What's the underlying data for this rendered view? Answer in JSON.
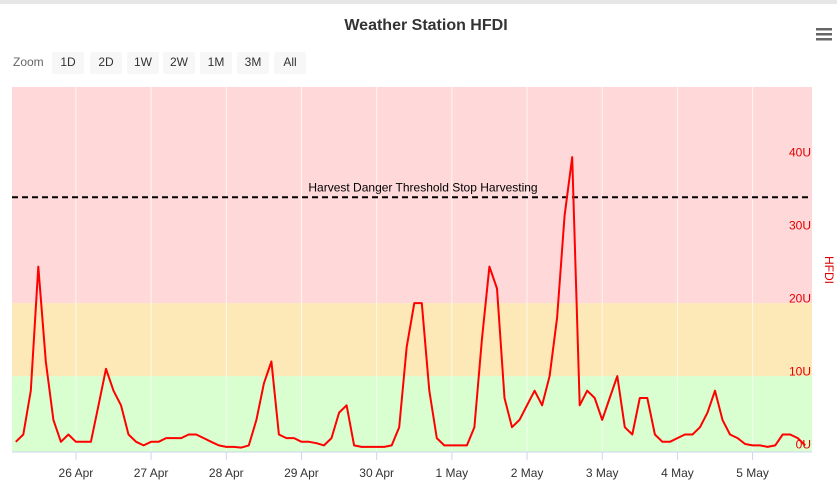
{
  "range_selector": {
    "label": "Zoom",
    "buttons": [
      "1D",
      "2D",
      "1W",
      "2W",
      "1M",
      "3M",
      "All"
    ]
  },
  "chart_data": {
    "type": "line",
    "title": "Weather Station HFDI",
    "y_axis_label": "HFDI",
    "y_axis_side": "right",
    "xlim": [
      115.15,
      125.79
    ],
    "ylim": [
      -0.4,
      49.6
    ],
    "xticks": [
      {
        "value": 116,
        "label": "26 Apr"
      },
      {
        "value": 117,
        "label": "27 Apr"
      },
      {
        "value": 118,
        "label": "28 Apr"
      },
      {
        "value": 119,
        "label": "29 Apr"
      },
      {
        "value": 120,
        "label": "30 Apr"
      },
      {
        "value": 121,
        "label": "1 May"
      },
      {
        "value": 122,
        "label": "2 May"
      },
      {
        "value": 123,
        "label": "3 May"
      },
      {
        "value": 124,
        "label": "4 May"
      },
      {
        "value": 125,
        "label": "5 May"
      }
    ],
    "yticks": [
      {
        "value": 0,
        "label": "0U"
      },
      {
        "value": 10,
        "label": "10U"
      },
      {
        "value": 20,
        "label": "20U"
      },
      {
        "value": 30,
        "label": "30U"
      },
      {
        "value": 40,
        "label": "40U"
      }
    ],
    "plot_bands": [
      {
        "from": 0,
        "to": 10,
        "color": "#d9ffd0"
      },
      {
        "from": 10,
        "to": 20,
        "color": "#fde8b8"
      },
      {
        "from": 20,
        "to": 50,
        "color": "#ffd9d9"
      }
    ],
    "plot_line": {
      "value": 34.5,
      "label": "Harvest Danger Threshold Stop Harvesting"
    },
    "series": [
      {
        "name": "HFDI",
        "color": "#ff0000",
        "x": [
          115.2,
          115.3,
          115.4,
          115.5,
          115.6,
          115.7,
          115.8,
          115.9,
          116.0,
          116.1,
          116.2,
          116.3,
          116.4,
          116.5,
          116.6,
          116.7,
          116.8,
          116.9,
          117.0,
          117.1,
          117.2,
          117.3,
          117.4,
          117.5,
          117.6,
          117.7,
          117.8,
          117.9,
          118.0,
          118.1,
          118.2,
          118.3,
          118.4,
          118.5,
          118.6,
          118.7,
          118.8,
          118.9,
          119.0,
          119.1,
          119.2,
          119.3,
          119.4,
          119.5,
          119.6,
          119.7,
          119.8,
          119.9,
          120.0,
          120.1,
          120.2,
          120.3,
          120.4,
          120.5,
          120.6,
          120.7,
          120.8,
          120.9,
          121.0,
          121.1,
          121.2,
          121.3,
          121.4,
          121.5,
          121.6,
          121.7,
          121.8,
          121.9,
          122.0,
          122.1,
          122.2,
          122.3,
          122.4,
          122.5,
          122.6,
          122.7,
          122.8,
          122.9,
          123.0,
          123.1,
          123.2,
          123.3,
          123.4,
          123.5,
          123.6,
          123.7,
          123.8,
          123.9,
          124.0,
          124.1,
          124.2,
          124.3,
          124.4,
          124.5,
          124.6,
          124.7,
          124.8,
          124.9,
          125.0,
          125.1,
          125.2,
          125.3,
          125.4,
          125.5,
          125.6,
          125.7
        ],
        "values": [
          1,
          2,
          8,
          25,
          12,
          4,
          1,
          2,
          1,
          1,
          1,
          6,
          11,
          8,
          6,
          2,
          1,
          0.5,
          1,
          1,
          1.5,
          1.5,
          1.5,
          2,
          2,
          1.5,
          1,
          0.5,
          0.3,
          0.3,
          0.2,
          0.5,
          4,
          9,
          12,
          2,
          1.5,
          1.5,
          1,
          1,
          0.8,
          0.5,
          1.5,
          5,
          6,
          0.5,
          0.3,
          0.3,
          0.3,
          0.3,
          0.5,
          3,
          14,
          20,
          20,
          8,
          1.5,
          0.5,
          0.5,
          0.5,
          0.5,
          3,
          15,
          25,
          22,
          7,
          3,
          4,
          6,
          8,
          6,
          10,
          18,
          32,
          40,
          6,
          8,
          7,
          4,
          7,
          10,
          3,
          2,
          7,
          7,
          2,
          1,
          1,
          1.5,
          2,
          2,
          3,
          5,
          8,
          4,
          2,
          1.5,
          0.7,
          0.5,
          0.5,
          0.3,
          0.5,
          2,
          2,
          1.5,
          0.5
        ]
      }
    ]
  }
}
